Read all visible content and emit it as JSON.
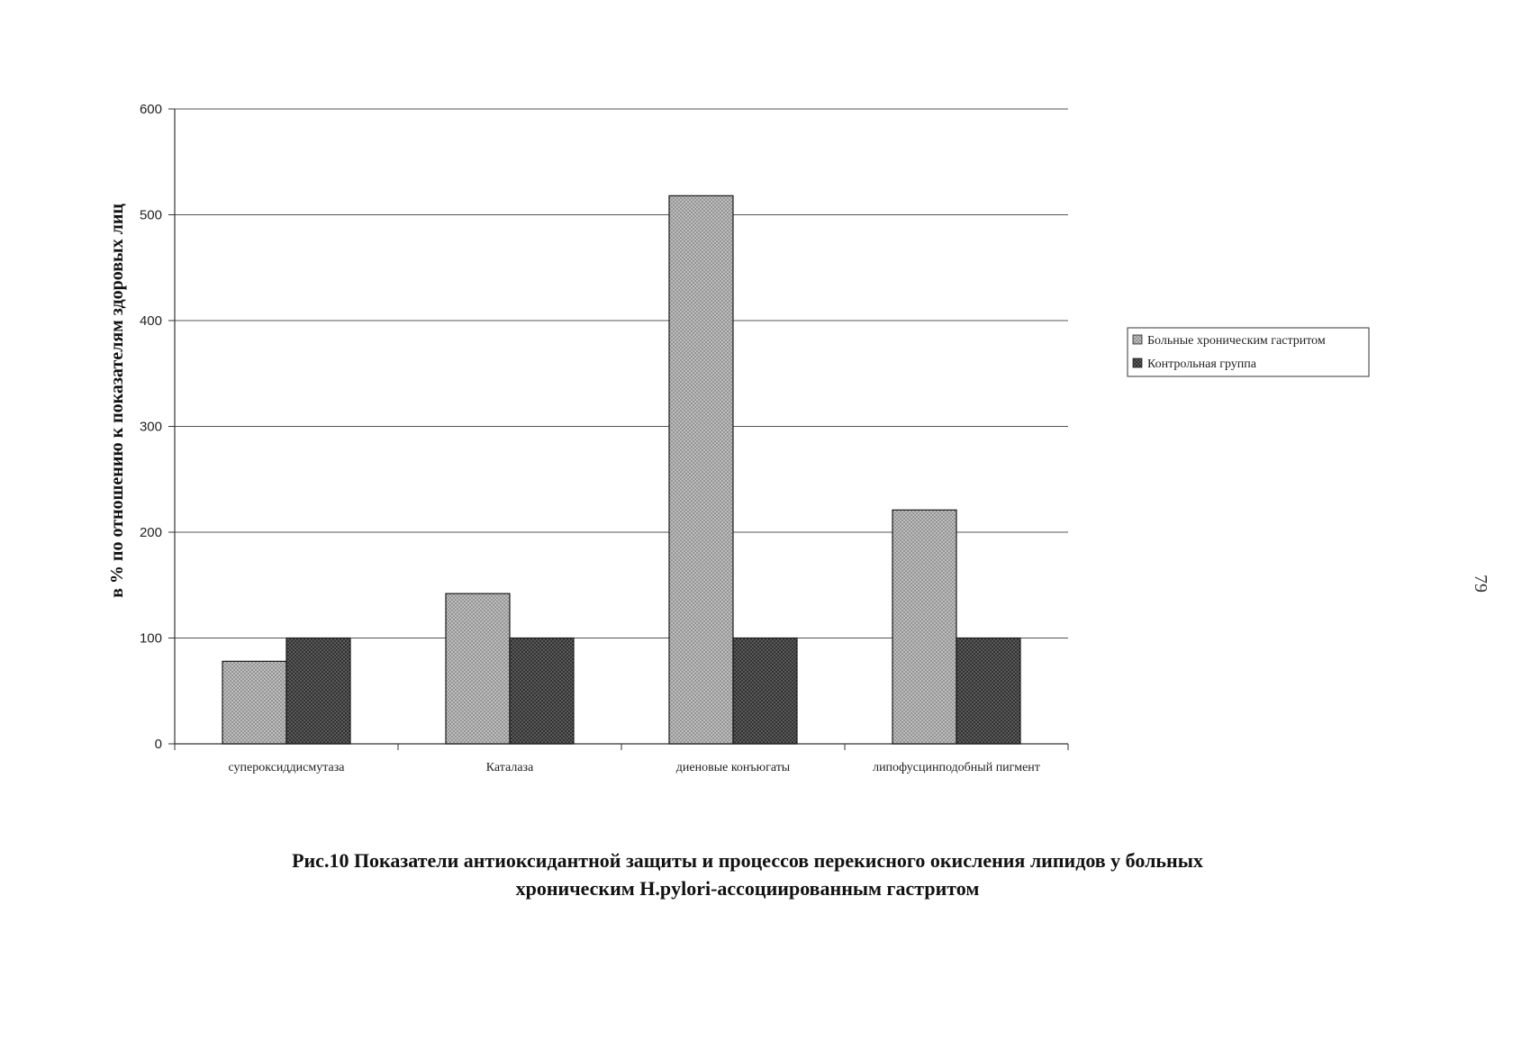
{
  "chart_data": {
    "type": "bar",
    "categories": [
      "супероксиддисмутаза",
      "Каталаза",
      "диеновые конъюгаты",
      "липофусцинподобный пигмент"
    ],
    "series": [
      {
        "name": "Больные хроническим гастритом",
        "values": [
          78,
          142,
          518,
          221
        ],
        "color": "#b4b4b4",
        "pattern": "light-crosshatch"
      },
      {
        "name": "Контрольная группа",
        "values": [
          100,
          100,
          100,
          100
        ],
        "color": "#555555",
        "pattern": "dark-crosshatch"
      }
    ],
    "yticks": [
      0,
      100,
      200,
      300,
      400,
      500,
      600
    ],
    "ylim": [
      0,
      600
    ],
    "ylabel": "в % по отношению к показателям здоровых лиц",
    "xlabel": "",
    "grid": true,
    "legend_position": "right"
  },
  "caption": {
    "line1": "Рис.10 Показатели антиоксидантной защиты и процессов перекисного окисления липидов у больных",
    "line2": "хроническим H.pylori-ассоциированным гастритом"
  },
  "page_number": "79"
}
